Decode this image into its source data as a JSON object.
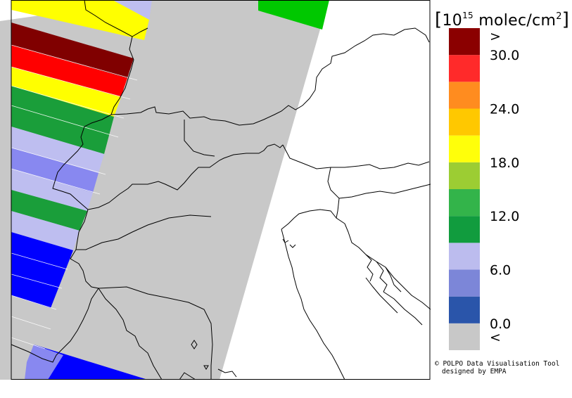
{
  "legend": {
    "unit_label": {
      "open_bracket": "[",
      "base": "10",
      "exponent": "15",
      "text": " molec/cm",
      "square": "2",
      "close_bracket": "]"
    },
    "colors": [
      "#c8c8c8",
      "#2a55aa",
      "#7c86d8",
      "#bcbcee",
      "#119c3e",
      "#33b44a",
      "#9ccd33",
      "#ffff0a",
      "#ffc800",
      "#ff8c1f",
      "#ff2a2a",
      "#8b0000"
    ],
    "tick_labels": [
      {
        "text": "<",
        "position_index": 0
      },
      {
        "text": "0.0",
        "position_index": 1
      },
      {
        "text": "6.0",
        "position_index": 3
      },
      {
        "text": "12.0",
        "position_index": 5
      },
      {
        "text": "18.0",
        "position_index": 7
      },
      {
        "text": "24.0",
        "position_index": 9
      },
      {
        "text": "30.0",
        "position_index": 11
      },
      {
        "text": ">",
        "position_index": 12
      }
    ]
  },
  "credits": {
    "line1": "© POLPO Data Visualisation Tool",
    "line2": "designed by EMPA"
  },
  "palette": {
    "no_data": "#c8c8c8",
    "dark_red": "#800000",
    "red": "#ff0000",
    "yellow": "#ffff00",
    "green": "#1a9e3a",
    "bright_green": "#00c800",
    "light_lavender": "#bebef0",
    "lavender": "#8888f0",
    "blue": "#0000ff",
    "border": "#000000"
  }
}
